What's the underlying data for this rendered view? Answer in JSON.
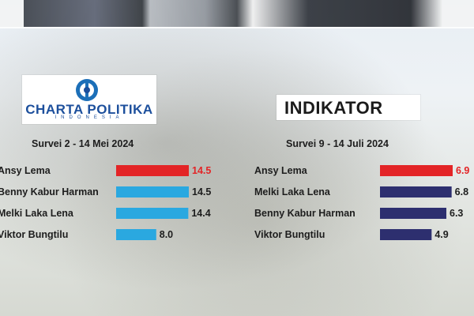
{
  "logos": {
    "left_name": "CHARTA POLITIKA",
    "left_sub": "INDONESIA",
    "right_name": "INDIKATOR"
  },
  "colors": {
    "highlight_red": "#e32426",
    "left_bar": "#2aa8e0",
    "right_bar": "#2d2f6f",
    "highlight_value_text": "#e32426"
  },
  "chart_data": [
    {
      "type": "bar",
      "orientation": "horizontal",
      "title": "Survei 2 - 14 Mei 2024",
      "categories": [
        "Ansy Lema",
        "Benny Kabur Harman",
        "Melki Laka Lena",
        "Viktor Bungtilu"
      ],
      "values": [
        14.5,
        14.5,
        14.4,
        8.0
      ],
      "value_labels": [
        "14.5",
        "14.5",
        "14.4",
        "8.0"
      ],
      "highlight_index": 0,
      "xlim": [
        0,
        14.5
      ]
    },
    {
      "type": "bar",
      "orientation": "horizontal",
      "title": "Survei 9 - 14 Juli 2024",
      "categories": [
        "Ansy Lema",
        "Melki Laka Lena",
        "Benny Kabur Harman",
        "Viktor Bungtilu"
      ],
      "values": [
        6.9,
        6.8,
        6.3,
        4.9
      ],
      "value_labels": [
        "6.9",
        "6.8",
        "6.3",
        "4.9"
      ],
      "highlight_index": 0,
      "xlim": [
        0,
        6.9
      ]
    }
  ]
}
